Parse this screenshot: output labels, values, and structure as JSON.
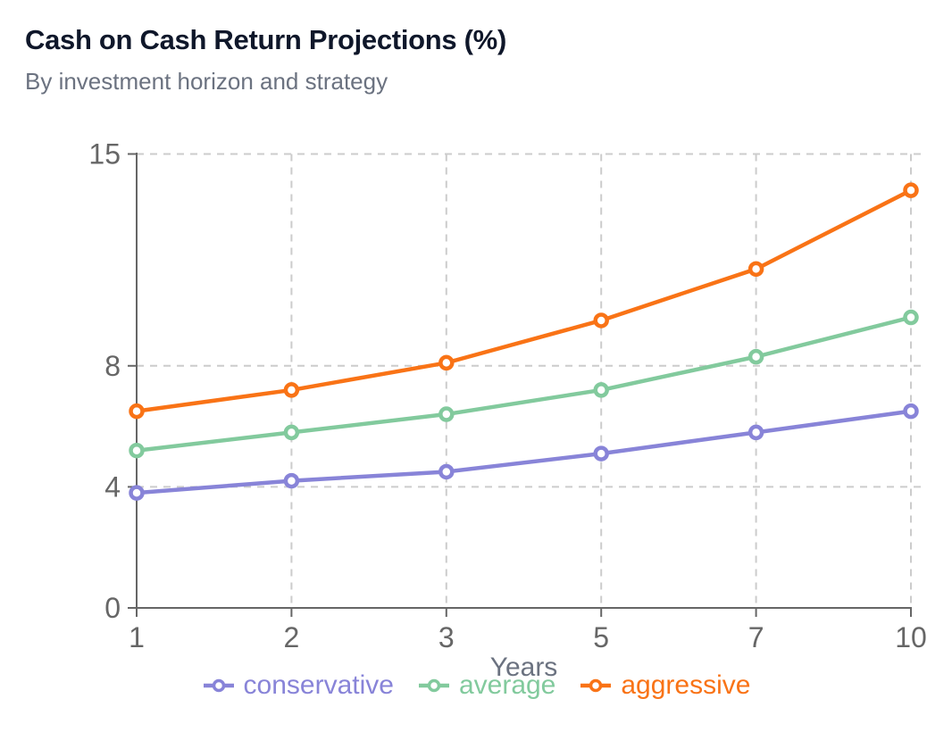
{
  "chart_data": {
    "type": "line",
    "title": "Cash on Cash Return Projections (%)",
    "subtitle": "By investment horizon and strategy",
    "xlabel": "Years",
    "ylabel": "",
    "x_axis_type": "categorical",
    "categories": [
      1,
      2,
      3,
      5,
      7,
      10
    ],
    "ylim": [
      0,
      15
    ],
    "y_ticks": [
      0,
      4,
      8,
      15
    ],
    "grid": "dashed",
    "legend_position": "bottom",
    "marker": "open-circle",
    "series": [
      {
        "name": "conservative",
        "color": "#8884d8",
        "values": [
          3.8,
          4.2,
          4.5,
          5.1,
          5.8,
          6.5
        ]
      },
      {
        "name": "average",
        "color": "#82ca9d",
        "values": [
          5.2,
          5.8,
          6.4,
          7.2,
          8.3,
          9.6
        ]
      },
      {
        "name": "aggressive",
        "color": "#f97316",
        "values": [
          6.5,
          7.2,
          8.1,
          9.5,
          11.2,
          13.8
        ]
      }
    ],
    "colors": {
      "grid": "#cccccc",
      "axis": "#666666",
      "tick_text": "#666666",
      "axis_label_text": "#6b7280",
      "title_text": "#0f172a",
      "subtitle_text": "#6b7280",
      "background": "#ffffff"
    }
  }
}
